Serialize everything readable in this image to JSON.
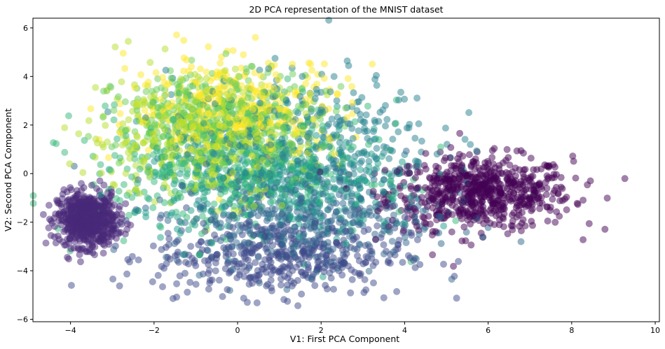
{
  "chart_data": {
    "type": "scatter",
    "title": "2D PCA representation of the MNIST dataset",
    "xlabel": "V1: First PCA Component",
    "ylabel": "V2: Second PCA Component",
    "xlim": [
      -4.9,
      10.1
    ],
    "ylim": [
      -6.1,
      6.4
    ],
    "xticks": [
      -4,
      -2,
      0,
      2,
      4,
      6,
      8,
      10
    ],
    "yticks": [
      -6,
      -4,
      -2,
      0,
      2,
      4,
      6
    ],
    "xtick_labels": [
      "−4",
      "−2",
      "0",
      "2",
      "4",
      "6",
      "8",
      "10"
    ],
    "ytick_labels": [
      "−6",
      "−4",
      "−2",
      "0",
      "2",
      "4",
      "6"
    ],
    "grid": false,
    "legend": "none",
    "colormap": "viridis",
    "marker_alpha": 0.5,
    "clusters": [
      {
        "label_value": 0,
        "color": "#440154",
        "center": [
          5.8,
          -0.8
        ],
        "spread": [
          1.1,
          0.75
        ],
        "count": 700
      },
      {
        "label_value": 1,
        "color": "#482878",
        "center": [
          -3.6,
          -1.9
        ],
        "spread": [
          0.35,
          0.55
        ],
        "count": 650
      },
      {
        "label_value": 2,
        "color": "#3e4a89",
        "center": [
          1.0,
          -3.4
        ],
        "spread": [
          1.5,
          0.8
        ],
        "count": 450
      },
      {
        "label_value": 3,
        "color": "#31688e",
        "center": [
          1.5,
          -1.8
        ],
        "spread": [
          1.6,
          1.0
        ],
        "count": 400
      },
      {
        "label_value": 4,
        "color": "#26828e",
        "center": [
          1.6,
          1.3
        ],
        "spread": [
          1.6,
          1.4
        ],
        "count": 400
      },
      {
        "label_value": 5,
        "color": "#1f9e89",
        "center": [
          1.0,
          -0.5
        ],
        "spread": [
          1.7,
          1.2
        ],
        "count": 400
      },
      {
        "label_value": 6,
        "color": "#35b779",
        "center": [
          -0.2,
          0.3
        ],
        "spread": [
          1.7,
          1.3
        ],
        "count": 400
      },
      {
        "label_value": 7,
        "color": "#6ece58",
        "center": [
          -0.5,
          2.2
        ],
        "spread": [
          1.2,
          1.0
        ],
        "count": 380
      },
      {
        "label_value": 8,
        "color": "#b5de2b",
        "center": [
          -1.0,
          1.5
        ],
        "spread": [
          1.3,
          1.3
        ],
        "count": 380
      },
      {
        "label_value": 9,
        "color": "#fde725",
        "center": [
          0.0,
          2.6
        ],
        "spread": [
          1.3,
          1.1
        ],
        "count": 380
      }
    ]
  }
}
